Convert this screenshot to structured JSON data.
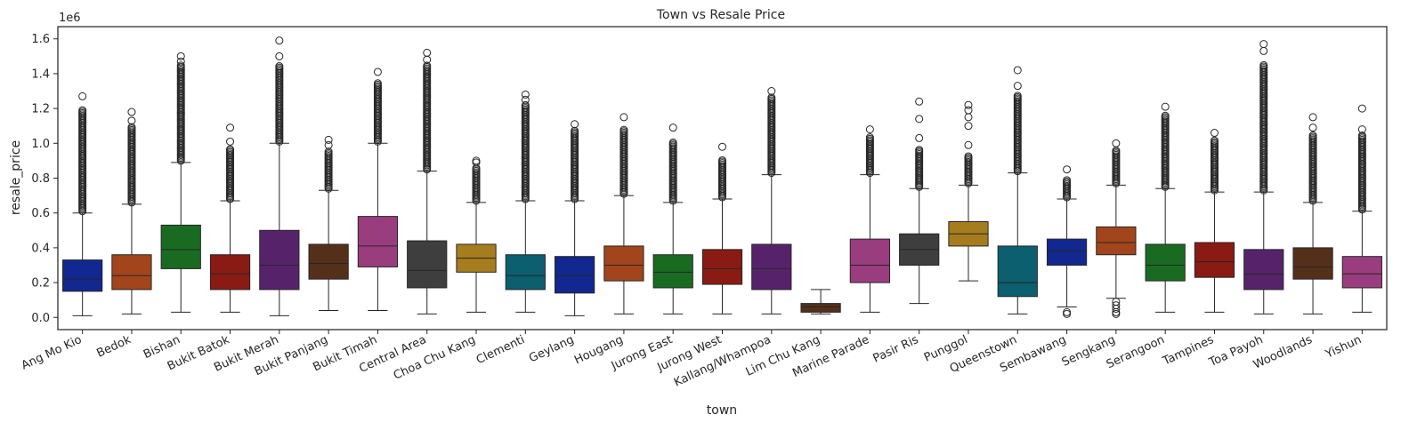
{
  "chart_data": {
    "type": "box",
    "title": "Town vs Resale Price",
    "xlabel": "town",
    "ylabel": "resale_price",
    "y_offset_label": "1e6",
    "ylim": [
      -0.07,
      1.67
    ],
    "y_ticks": [
      "0.0",
      "0.2",
      "0.4",
      "0.6",
      "0.8",
      "1.0",
      "1.2",
      "1.4",
      "1.6"
    ],
    "grid": false,
    "categories": [
      "Ang Mo Kio",
      "Bedok",
      "Bishan",
      "Bukit Batok",
      "Bukit Merah",
      "Bukit Panjang",
      "Bukit Timah",
      "Central Area",
      "Choa Chu Kang",
      "Clementi",
      "Geylang",
      "Hougang",
      "Jurong East",
      "Jurong West",
      "Kallang/Whampoa",
      "Lim Chu Kang",
      "Marine Parade",
      "Pasir Ris",
      "Punggol",
      "Queenstown",
      "Sembawang",
      "Sengkang",
      "Serangoon",
      "Tampines",
      "Toa Payoh",
      "Woodlands",
      "Yishun"
    ],
    "palette": [
      "#12278f",
      "#a3451c",
      "#1a6b22",
      "#8a1a14",
      "#56236b",
      "#54301a",
      "#9a3d7f",
      "#3e3e3e",
      "#a67d1e",
      "#0b5f6e"
    ],
    "boxes": [
      {
        "whisker_low": 0.01,
        "q1": 0.15,
        "median": 0.22,
        "q3": 0.33,
        "whisker_high": 0.6,
        "outlier_band": [
          0.61,
          1.19
        ],
        "outliers": [
          1.27
        ]
      },
      {
        "whisker_low": 0.02,
        "q1": 0.16,
        "median": 0.24,
        "q3": 0.36,
        "whisker_high": 0.65,
        "outlier_band": [
          0.66,
          1.1
        ],
        "outliers": [
          1.13,
          1.18
        ]
      },
      {
        "whisker_low": 0.03,
        "q1": 0.28,
        "median": 0.39,
        "q3": 0.53,
        "whisker_high": 0.89,
        "outlier_band": [
          0.9,
          1.45
        ],
        "outliers": [
          1.47,
          1.5
        ]
      },
      {
        "whisker_low": 0.03,
        "q1": 0.16,
        "median": 0.25,
        "q3": 0.36,
        "whisker_high": 0.67,
        "outlier_band": [
          0.68,
          0.97
        ],
        "outliers": [
          1.01,
          1.09
        ]
      },
      {
        "whisker_low": 0.01,
        "q1": 0.16,
        "median": 0.3,
        "q3": 0.5,
        "whisker_high": 1.0,
        "outlier_band": [
          1.01,
          1.45
        ],
        "outliers": [
          1.5,
          1.59
        ]
      },
      {
        "whisker_low": 0.04,
        "q1": 0.22,
        "median": 0.31,
        "q3": 0.42,
        "whisker_high": 0.73,
        "outlier_band": [
          0.74,
          0.96
        ],
        "outliers": [
          0.99,
          1.02
        ]
      },
      {
        "whisker_low": 0.04,
        "q1": 0.29,
        "median": 0.41,
        "q3": 0.58,
        "whisker_high": 1.0,
        "outlier_band": [
          1.01,
          1.35
        ],
        "outliers": [
          1.41
        ]
      },
      {
        "whisker_low": 0.02,
        "q1": 0.17,
        "median": 0.27,
        "q3": 0.44,
        "whisker_high": 0.84,
        "outlier_band": [
          0.85,
          1.45
        ],
        "outliers": [
          1.48,
          1.52
        ]
      },
      {
        "whisker_low": 0.03,
        "q1": 0.26,
        "median": 0.34,
        "q3": 0.42,
        "whisker_high": 0.66,
        "outlier_band": [
          0.67,
          0.86
        ],
        "outliers": [
          0.89,
          0.9
        ]
      },
      {
        "whisker_low": 0.03,
        "q1": 0.16,
        "median": 0.24,
        "q3": 0.36,
        "whisker_high": 0.67,
        "outlier_band": [
          0.68,
          1.22
        ],
        "outliers": [
          1.25,
          1.28
        ]
      },
      {
        "whisker_low": 0.01,
        "q1": 0.14,
        "median": 0.24,
        "q3": 0.35,
        "whisker_high": 0.67,
        "outlier_band": [
          0.68,
          1.08
        ],
        "outliers": [
          1.11
        ]
      },
      {
        "whisker_low": 0.02,
        "q1": 0.21,
        "median": 0.3,
        "q3": 0.41,
        "whisker_high": 0.7,
        "outlier_band": [
          0.71,
          1.08
        ],
        "outliers": [
          1.15
        ]
      },
      {
        "whisker_low": 0.02,
        "q1": 0.17,
        "median": 0.26,
        "q3": 0.36,
        "whisker_high": 0.66,
        "outlier_band": [
          0.67,
          1.01
        ],
        "outliers": [
          1.09
        ]
      },
      {
        "whisker_low": 0.02,
        "q1": 0.19,
        "median": 0.28,
        "q3": 0.39,
        "whisker_high": 0.68,
        "outlier_band": [
          0.69,
          0.91
        ],
        "outliers": [
          0.98
        ]
      },
      {
        "whisker_low": 0.02,
        "q1": 0.16,
        "median": 0.28,
        "q3": 0.42,
        "whisker_high": 0.82,
        "outlier_band": [
          0.83,
          1.27
        ],
        "outliers": [
          1.3
        ]
      },
      {
        "whisker_low": 0.02,
        "q1": 0.03,
        "median": 0.06,
        "q3": 0.08,
        "whisker_high": 0.16,
        "outlier_band": null,
        "outliers": []
      },
      {
        "whisker_low": 0.03,
        "q1": 0.2,
        "median": 0.3,
        "q3": 0.45,
        "whisker_high": 0.82,
        "outlier_band": [
          0.83,
          1.04
        ],
        "outliers": [
          1.08
        ]
      },
      {
        "whisker_low": 0.08,
        "q1": 0.3,
        "median": 0.39,
        "q3": 0.48,
        "whisker_high": 0.74,
        "outlier_band": [
          0.75,
          0.97
        ],
        "outliers": [
          1.03,
          1.14,
          1.24
        ]
      },
      {
        "whisker_low": 0.21,
        "q1": 0.41,
        "median": 0.48,
        "q3": 0.55,
        "whisker_high": 0.76,
        "outlier_band": [
          0.77,
          0.93
        ],
        "outliers": [
          0.99,
          1.1,
          1.15,
          1.19,
          1.22
        ]
      },
      {
        "whisker_low": 0.02,
        "q1": 0.12,
        "median": 0.2,
        "q3": 0.41,
        "whisker_high": 0.83,
        "outlier_band": [
          0.84,
          1.28
        ],
        "outliers": [
          1.33,
          1.42
        ]
      },
      {
        "whisker_low": 0.06,
        "q1": 0.3,
        "median": 0.38,
        "q3": 0.45,
        "whisker_high": 0.68,
        "outlier_band": [
          0.69,
          0.79
        ],
        "outliers": [
          0.02,
          0.03,
          0.85
        ]
      },
      {
        "whisker_low": 0.11,
        "q1": 0.36,
        "median": 0.43,
        "q3": 0.52,
        "whisker_high": 0.76,
        "outlier_band": [
          0.77,
          0.96
        ],
        "outliers": [
          0.02,
          0.03,
          0.05,
          0.07,
          0.09,
          1.0
        ]
      },
      {
        "whisker_low": 0.03,
        "q1": 0.21,
        "median": 0.3,
        "q3": 0.42,
        "whisker_high": 0.74,
        "outlier_band": [
          0.75,
          1.16
        ],
        "outliers": [
          1.21
        ]
      },
      {
        "whisker_low": 0.03,
        "q1": 0.23,
        "median": 0.32,
        "q3": 0.43,
        "whisker_high": 0.72,
        "outlier_band": [
          0.73,
          1.02
        ],
        "outliers": [
          1.06
        ]
      },
      {
        "whisker_low": 0.02,
        "q1": 0.16,
        "median": 0.25,
        "q3": 0.39,
        "whisker_high": 0.72,
        "outlier_band": [
          0.73,
          1.45
        ],
        "outliers": [
          1.53,
          1.57
        ]
      },
      {
        "whisker_low": 0.02,
        "q1": 0.22,
        "median": 0.29,
        "q3": 0.4,
        "whisker_high": 0.66,
        "outlier_band": [
          0.67,
          1.05
        ],
        "outliers": [
          1.09,
          1.15
        ]
      },
      {
        "whisker_low": 0.03,
        "q1": 0.17,
        "median": 0.25,
        "q3": 0.35,
        "whisker_high": 0.61,
        "outlier_band": [
          0.62,
          1.05
        ],
        "outliers": [
          1.08,
          1.2
        ]
      }
    ]
  }
}
